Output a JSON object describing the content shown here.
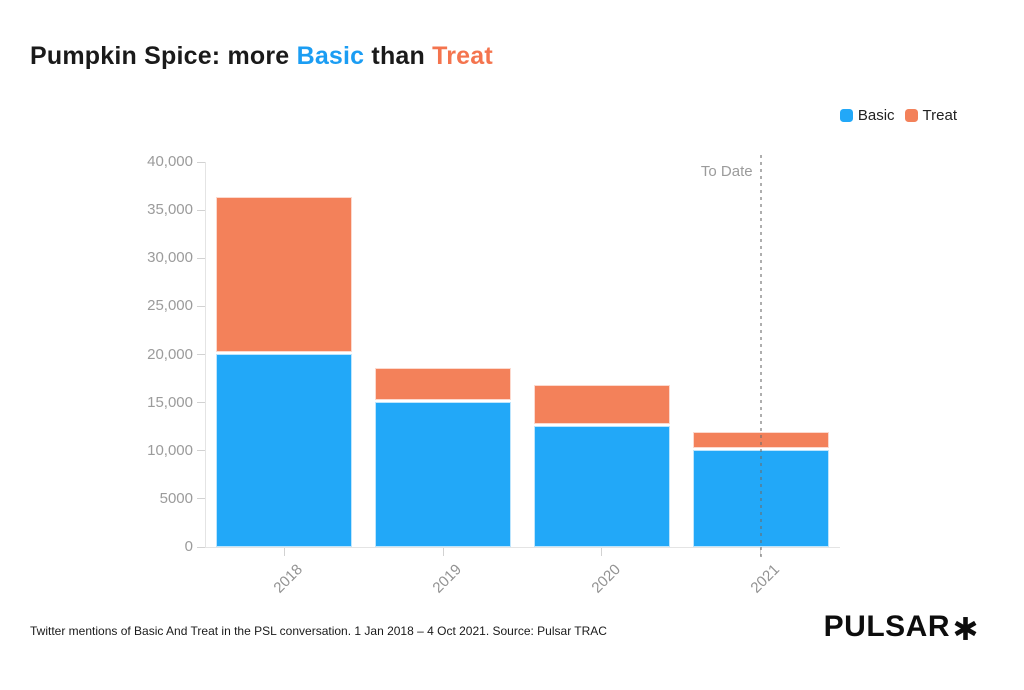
{
  "title": {
    "prefix": "Pumpkin Spice: more ",
    "basic": "Basic",
    "mid": " than ",
    "treat": "Treat"
  },
  "legend": {
    "items": [
      {
        "label": "Basic",
        "color": "#22a8f8"
      },
      {
        "label": "Treat",
        "color": "#f3815a"
      }
    ]
  },
  "footer": {
    "caption": "Twitter mentions of Basic And Treat in the PSL conversation. 1 Jan 2018 – 4 Oct 2021. Source: Pulsar TRAC",
    "logo_text": "PULSAR",
    "logo_mark_icon": "six-spoke-asterisk"
  },
  "colors": {
    "title_basic": "#1b9df3",
    "title_treat": "#f4744e",
    "bar_basic": "#22a8f8",
    "bar_treat": "#f3815a",
    "axis_text": "#9b9b9b",
    "axis_line": "#e4e4e4",
    "text_dark": "#1a1a1a"
  },
  "chart_data": {
    "type": "bar",
    "stacked": true,
    "title": "Pumpkin Spice: more Basic than Treat",
    "categories": [
      "2018",
      "2019",
      "2020",
      "2021"
    ],
    "series": [
      {
        "name": "Basic",
        "color": "#22a8f8",
        "values": [
          20100,
          15100,
          12600,
          10100
        ]
      },
      {
        "name": "Treat",
        "color": "#f3815a",
        "values": [
          16300,
          3500,
          4200,
          1800
        ]
      }
    ],
    "xlabel": "",
    "ylabel": "",
    "ylim": [
      0,
      40000
    ],
    "yticks": [
      {
        "value": 40000,
        "label": "40,000"
      },
      {
        "value": 35000,
        "label": "35,000"
      },
      {
        "value": 30000,
        "label": "30,000"
      },
      {
        "value": 25000,
        "label": "25,000"
      },
      {
        "value": 20000,
        "label": "20,000"
      },
      {
        "value": 15000,
        "label": "15,000"
      },
      {
        "value": 10000,
        "label": "10,000"
      },
      {
        "value": 5000,
        "label": "5000"
      },
      {
        "value": 0,
        "label": "0"
      }
    ],
    "grid": false,
    "legend_position": "top-right",
    "annotation": {
      "label": "To Date",
      "x_category": "2021",
      "line_style": "dotted"
    }
  }
}
